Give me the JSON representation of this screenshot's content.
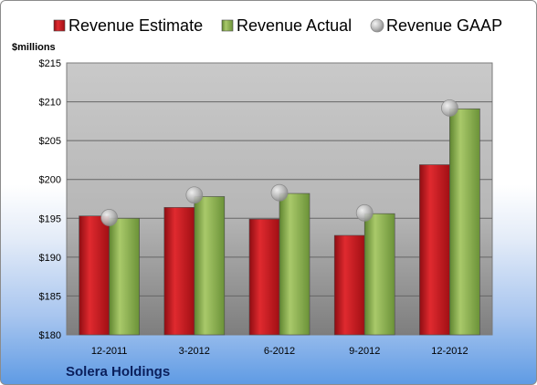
{
  "company": "Solera Holdings",
  "unit_label": "$millions",
  "chart_data": {
    "type": "bar",
    "categories": [
      "12-2011",
      "3-2012",
      "6-2012",
      "9-2012",
      "12-2012"
    ],
    "series": [
      {
        "name": "Revenue Estimate",
        "type": "bar",
        "color": "#c8151b",
        "values": [
          195.3,
          196.4,
          194.9,
          192.8,
          201.9
        ]
      },
      {
        "name": "Revenue Actual",
        "type": "bar",
        "color": "#8db050",
        "values": [
          195.0,
          197.8,
          198.2,
          195.6,
          209.1
        ]
      },
      {
        "name": "Revenue GAAP",
        "type": "scatter",
        "color": "#b8b8b8",
        "values": [
          195.1,
          198.0,
          198.3,
          195.7,
          209.2
        ]
      }
    ],
    "ylim": [
      180,
      215
    ],
    "ytick_step": 5,
    "ytick_labels": [
      "$180",
      "$185",
      "$190",
      "$195",
      "$200",
      "$205",
      "$210",
      "$215"
    ],
    "grid": true,
    "legend_position": "top"
  }
}
